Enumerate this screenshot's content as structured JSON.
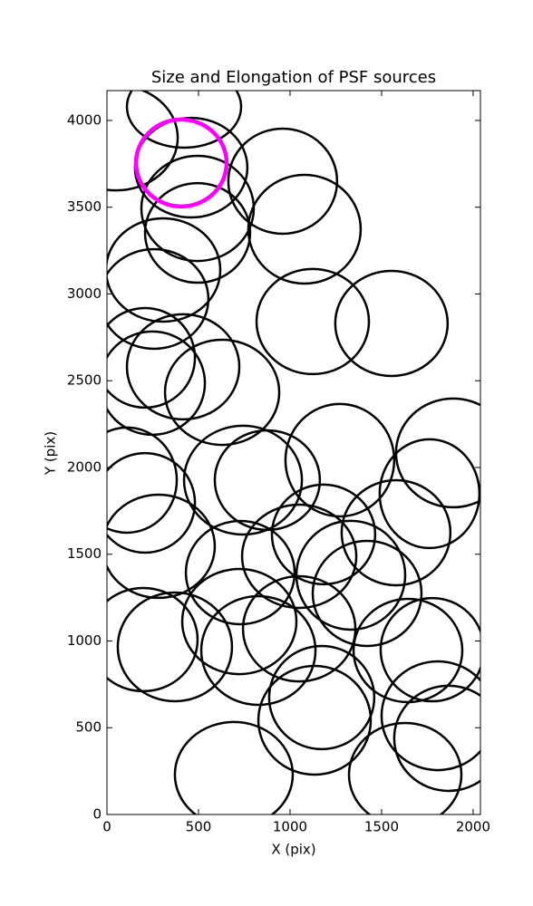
{
  "chart_data": {
    "type": "ellipse",
    "title": "Size and Elongation of PSF sources",
    "x_label": "X (pix)",
    "y_label": "Y (pix)",
    "xlim": [
      0,
      2040
    ],
    "ylim": [
      0,
      4172
    ],
    "xticks": [
      0,
      500,
      1000,
      1500,
      2000
    ],
    "yticks": [
      0,
      500,
      1000,
      1500,
      2000,
      2500,
      3000,
      3500,
      4000
    ],
    "series": [
      {
        "color": "#000000",
        "x": [
          50,
          421,
          460,
          495,
          495,
          960,
          1079,
          307,
          257,
          208,
          1124,
          1554,
          416,
          248,
          629,
          109,
          208,
          743,
          876,
          1272,
          1891,
          1762,
          282,
          728,
          1183,
          1579,
          1050,
          1332,
          1421,
          198,
          371,
          723,
          827,
          1050,
          1644,
          1777,
          1173,
          1134,
          693,
          1807,
          1866,
          1629
        ],
        "y": [
          3900,
          4078,
          3728,
          3493,
          3352,
          3650,
          3373,
          3138,
          2971,
          2632,
          2841,
          2830,
          2580,
          2486,
          2433,
          1927,
          1796,
          1927,
          1927,
          2042,
          2084,
          1849,
          1546,
          1394,
          1614,
          1624,
          1488,
          1379,
          1274,
          1008,
          966,
          1112,
          945,
          1070,
          945,
          950,
          674,
          543,
          230,
          569,
          439,
          230
        ],
        "width": [
          673,
          624,
          614,
          614,
          574,
          594,
          614,
          624,
          594,
          545,
          614,
          614,
          614,
          574,
          624,
          545,
          545,
          644,
          574,
          594,
          624,
          545,
          614,
          594,
          564,
          594,
          624,
          594,
          594,
          594,
          624,
          624,
          624,
          614,
          594,
          564,
          574,
          614,
          644,
          614,
          594,
          614
        ],
        "height": [
          606,
          470,
          574,
          606,
          574,
          606,
          627,
          595,
          574,
          574,
          606,
          606,
          606,
          595,
          606,
          606,
          574,
          627,
          574,
          648,
          627,
          627,
          595,
          595,
          574,
          606,
          595,
          627,
          606,
          595,
          627,
          606,
          627,
          606,
          595,
          595,
          595,
          627,
          606,
          627,
          606,
          595
        ]
      },
      {
        "color": "#ff00ff",
        "x": [
          406
        ],
        "y": [
          3755
        ],
        "width": [
          495
        ],
        "height": [
          501
        ]
      }
    ]
  }
}
